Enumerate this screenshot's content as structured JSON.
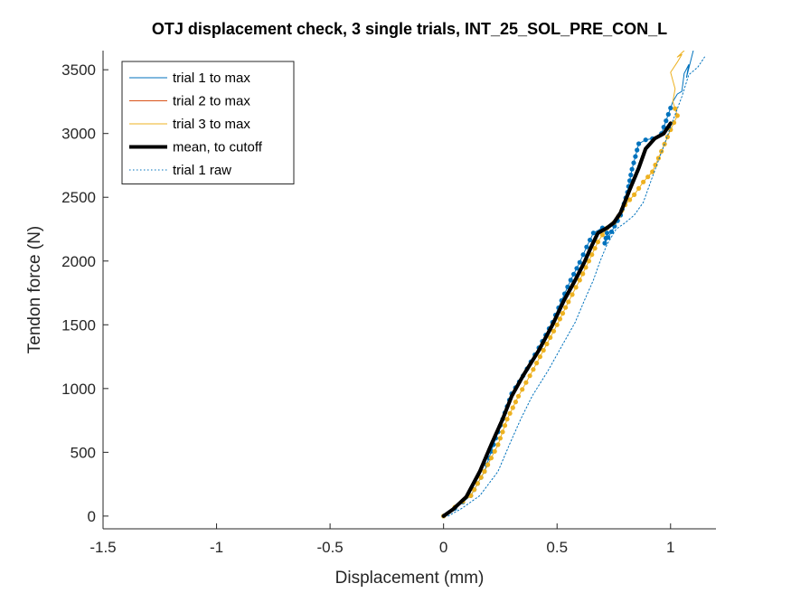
{
  "chart_data": {
    "type": "line",
    "title": "OTJ displacement check, 3 single trials, INT_25_SOL_PRE_CON_L",
    "xlabel": "Displacement (mm)",
    "ylabel": "Tendon force (N)",
    "xlim": [
      -1.5,
      1.2
    ],
    "ylim": [
      -100,
      3650
    ],
    "xticks": [
      -1.5,
      -1,
      -0.5,
      0,
      0.5,
      1
    ],
    "xtick_labels": [
      "-1.5",
      "-1",
      "-0.5",
      "0",
      "0.5",
      "1"
    ],
    "yticks": [
      0,
      500,
      1000,
      1500,
      2000,
      2500,
      3000,
      3500
    ],
    "ytick_labels": [
      "0",
      "500",
      "1000",
      "1500",
      "2000",
      "2500",
      "3000",
      "3500"
    ],
    "grid": false,
    "legend_position": "top-left",
    "series": [
      {
        "name": "trial 1 to max",
        "color": "#0072BD",
        "style": "thin",
        "x": [
          0.0,
          0.05,
          0.12,
          0.18,
          0.22,
          0.26,
          0.3,
          0.35,
          0.42,
          0.48,
          0.52,
          0.56,
          0.6,
          0.63,
          0.66,
          0.7,
          0.72,
          0.71,
          0.74,
          0.78,
          0.81,
          0.83,
          0.86,
          0.89,
          0.92,
          0.96,
          0.98,
          1.01,
          1.03,
          1.05,
          1.06,
          1.08,
          1.07,
          1.09,
          1.1
        ],
        "y": [
          0,
          60,
          160,
          350,
          560,
          760,
          960,
          1100,
          1320,
          1520,
          1690,
          1850,
          1990,
          2110,
          2220,
          2260,
          2220,
          2140,
          2230,
          2360,
          2540,
          2720,
          2920,
          2950,
          2960,
          3000,
          3100,
          3250,
          3310,
          3330,
          3470,
          3540,
          3440,
          3580,
          3650
        ]
      },
      {
        "name": "trial 2 to max",
        "color": "#D95319",
        "style": "thin",
        "x": [
          0.0
        ],
        "y": [
          0
        ]
      },
      {
        "name": "trial 3 to max",
        "color": "#EDB120",
        "style": "thin",
        "x": [
          0.0,
          0.05,
          0.12,
          0.18,
          0.24,
          0.28,
          0.33,
          0.38,
          0.44,
          0.5,
          0.55,
          0.6,
          0.64,
          0.68,
          0.72,
          0.75,
          0.77,
          0.8,
          0.84,
          0.88,
          0.92,
          0.96,
          1.0,
          1.03,
          1.01,
          1.02,
          1.0,
          1.03,
          1.05,
          1.03,
          1.06
        ],
        "y": [
          0,
          70,
          160,
          350,
          560,
          760,
          940,
          1100,
          1300,
          1500,
          1680,
          1850,
          2000,
          2150,
          2260,
          2300,
          2350,
          2440,
          2520,
          2620,
          2700,
          2860,
          3030,
          3140,
          3250,
          3350,
          3480,
          3560,
          3620,
          3600,
          3650
        ]
      },
      {
        "name": "mean, to cutoff",
        "color": "#000000",
        "style": "thick",
        "x": [
          0.0,
          0.04,
          0.1,
          0.16,
          0.21,
          0.26,
          0.3,
          0.35,
          0.42,
          0.48,
          0.53,
          0.58,
          0.62,
          0.65,
          0.68,
          0.72,
          0.75,
          0.78,
          0.82,
          0.86,
          0.89,
          0.93,
          0.97,
          1.0
        ],
        "y": [
          0,
          50,
          150,
          350,
          560,
          760,
          940,
          1100,
          1300,
          1500,
          1690,
          1850,
          1990,
          2110,
          2220,
          2260,
          2300,
          2380,
          2560,
          2730,
          2880,
          2960,
          3000,
          3080
        ]
      },
      {
        "name": "trial 1 raw",
        "color": "#0072BD",
        "style": "dotted",
        "x": [
          0.02,
          0.08,
          0.16,
          0.24,
          0.29,
          0.34,
          0.39,
          0.46,
          0.52,
          0.58,
          0.62,
          0.66,
          0.69,
          0.72,
          0.76,
          0.8,
          0.84,
          0.88,
          0.92,
          0.97,
          1.01,
          1.05,
          1.08,
          1.12,
          1.15
        ],
        "y": [
          0,
          60,
          160,
          350,
          560,
          760,
          940,
          1140,
          1330,
          1520,
          1690,
          1850,
          2000,
          2130,
          2250,
          2300,
          2360,
          2460,
          2660,
          2900,
          3100,
          3290,
          3460,
          3520,
          3600
        ]
      }
    ]
  }
}
